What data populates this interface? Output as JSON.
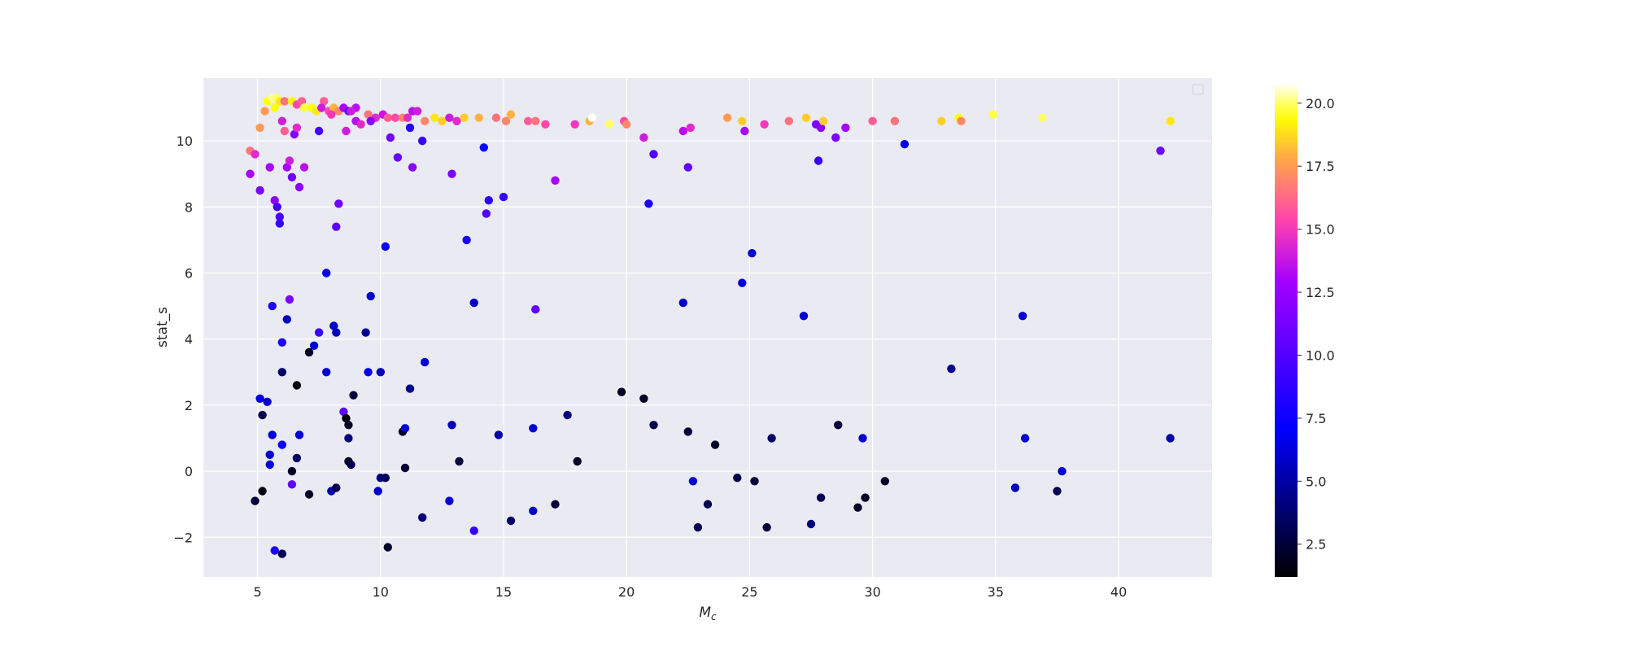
{
  "chart_data": {
    "type": "scatter",
    "title": "",
    "xlabel": "M",
    "xlabel_sub": "c",
    "ylabel": "stat_s",
    "xlim": [
      2.8,
      43.8
    ],
    "ylim": [
      -3.2,
      11.9
    ],
    "xticks": [
      5,
      10,
      15,
      20,
      25,
      30,
      35,
      40
    ],
    "yticks": [
      -2,
      0,
      2,
      4,
      6,
      8,
      10
    ],
    "grid": true,
    "legend": "top-right (empty)",
    "colorbar": {
      "colormap": "gnuplot2",
      "range": [
        1.2,
        20.8
      ],
      "ticks": [
        "2.5",
        "5.0",
        "7.5",
        "10.0",
        "12.5",
        "15.0",
        "17.5",
        "20.0"
      ],
      "tick_values": [
        2.5,
        5.0,
        7.5,
        10.0,
        12.5,
        15.0,
        17.5,
        20.0
      ]
    },
    "points": [
      [
        4.7,
        9.7,
        16.5
      ],
      [
        4.9,
        9.6,
        14.5
      ],
      [
        4.7,
        9.0,
        13.0
      ],
      [
        5.1,
        10.4,
        17.5
      ],
      [
        5.3,
        10.9,
        17.5
      ],
      [
        5.4,
        11.2,
        19.5
      ],
      [
        5.6,
        11.3,
        20.2
      ],
      [
        5.8,
        11.3,
        20.0
      ],
      [
        5.9,
        11.2,
        19.0
      ],
      [
        5.7,
        11.0,
        19.5
      ],
      [
        6.1,
        11.2,
        16.5
      ],
      [
        6.4,
        11.2,
        19.2
      ],
      [
        6.6,
        11.1,
        15.5
      ],
      [
        6.8,
        11.2,
        16.0
      ],
      [
        6.9,
        11.0,
        19.8
      ],
      [
        7.2,
        11.0,
        19.5
      ],
      [
        7.4,
        10.9,
        19.0
      ],
      [
        7.7,
        11.2,
        16.0
      ],
      [
        7.9,
        10.9,
        15.5
      ],
      [
        8.1,
        11.0,
        18.0
      ],
      [
        8.3,
        10.9,
        17.0
      ],
      [
        8.5,
        11.0,
        13.0
      ],
      [
        8.7,
        10.9,
        10.8
      ],
      [
        9.0,
        11.0,
        13.5
      ],
      [
        9.5,
        10.8,
        16.5
      ],
      [
        9.8,
        10.7,
        14.5
      ],
      [
        10.1,
        10.8,
        13.8
      ],
      [
        10.3,
        10.7,
        16.0
      ],
      [
        10.6,
        10.7,
        15.5
      ],
      [
        10.9,
        10.7,
        17.0
      ],
      [
        11.1,
        10.7,
        14.5
      ],
      [
        11.3,
        10.9,
        13.5
      ],
      [
        11.5,
        10.9,
        14.0
      ],
      [
        11.8,
        10.6,
        17.0
      ],
      [
        12.2,
        10.7,
        19.0
      ],
      [
        12.5,
        10.6,
        18.5
      ],
      [
        12.8,
        10.7,
        14.0
      ],
      [
        13.1,
        10.6,
        14.5
      ],
      [
        13.4,
        10.7,
        18.5
      ],
      [
        14.0,
        10.7,
        18.0
      ],
      [
        14.7,
        10.7,
        16.5
      ],
      [
        15.1,
        10.6,
        17.0
      ],
      [
        15.3,
        10.8,
        18.0
      ],
      [
        16.0,
        10.6,
        16.0
      ],
      [
        16.3,
        10.6,
        16.5
      ],
      [
        16.7,
        10.5,
        15.5
      ],
      [
        17.9,
        10.5,
        15.0
      ],
      [
        18.5,
        10.6,
        18.0
      ],
      [
        18.6,
        10.7,
        20.8
      ],
      [
        19.3,
        10.5,
        20.0
      ],
      [
        19.9,
        10.6,
        15.5
      ],
      [
        20.0,
        10.5,
        17.0
      ],
      [
        20.7,
        10.1,
        14.0
      ],
      [
        22.3,
        10.3,
        13.5
      ],
      [
        22.6,
        10.4,
        14.5
      ],
      [
        24.1,
        10.7,
        17.5
      ],
      [
        24.8,
        10.3,
        13.0
      ],
      [
        24.7,
        10.6,
        18.5
      ],
      [
        25.6,
        10.5,
        15.0
      ],
      [
        26.6,
        10.6,
        16.5
      ],
      [
        27.3,
        10.7,
        18.5
      ],
      [
        27.7,
        10.5,
        11.5
      ],
      [
        27.9,
        10.4,
        12.0
      ],
      [
        28.0,
        10.6,
        18.5
      ],
      [
        28.9,
        10.4,
        13.0
      ],
      [
        30.0,
        10.6,
        16.0
      ],
      [
        30.9,
        10.6,
        16.5
      ],
      [
        32.8,
        10.6,
        18.5
      ],
      [
        33.5,
        10.7,
        19.5
      ],
      [
        33.6,
        10.6,
        17.0
      ],
      [
        34.9,
        10.8,
        19.8
      ],
      [
        36.9,
        10.7,
        20.0
      ],
      [
        42.1,
        10.6,
        19.0
      ],
      [
        5.1,
        8.5,
        11.5
      ],
      [
        5.5,
        9.2,
        13.0
      ],
      [
        5.7,
        8.2,
        12.0
      ],
      [
        5.8,
        8.0,
        9.5
      ],
      [
        5.9,
        7.7,
        9.8
      ],
      [
        5.9,
        7.5,
        9.0
      ],
      [
        6.0,
        10.6,
        14.0
      ],
      [
        6.1,
        10.3,
        16.0
      ],
      [
        6.2,
        9.2,
        13.0
      ],
      [
        6.3,
        9.4,
        14.0
      ],
      [
        6.4,
        8.9,
        11.0
      ],
      [
        6.5,
        10.2,
        11.8
      ],
      [
        6.6,
        10.4,
        14.5
      ],
      [
        6.7,
        8.6,
        12.0
      ],
      [
        6.9,
        9.2,
        13.5
      ],
      [
        7.5,
        10.3,
        9.5
      ],
      [
        7.6,
        11.0,
        14.0
      ],
      [
        8.0,
        10.8,
        15.0
      ],
      [
        8.2,
        7.4,
        10.5
      ],
      [
        8.3,
        8.1,
        11.0
      ],
      [
        8.6,
        10.3,
        14.0
      ],
      [
        8.8,
        10.9,
        14.0
      ],
      [
        9.0,
        10.6,
        13.5
      ],
      [
        9.2,
        10.5,
        14.5
      ],
      [
        9.6,
        10.6,
        12.0
      ],
      [
        10.4,
        10.1,
        11.0
      ],
      [
        10.7,
        9.5,
        10.8
      ],
      [
        11.2,
        10.4,
        8.5
      ],
      [
        11.3,
        9.2,
        12.0
      ],
      [
        11.7,
        10.0,
        9.0
      ],
      [
        12.9,
        9.0,
        11.5
      ],
      [
        14.2,
        9.8,
        7.5
      ],
      [
        14.4,
        8.2,
        8.5
      ],
      [
        14.3,
        7.8,
        9.8
      ],
      [
        15.0,
        8.3,
        9.0
      ],
      [
        17.1,
        8.8,
        13.0
      ],
      [
        21.1,
        9.6,
        10.0
      ],
      [
        20.9,
        8.1,
        8.0
      ],
      [
        22.5,
        9.2,
        10.5
      ],
      [
        27.8,
        9.4,
        9.0
      ],
      [
        28.5,
        10.1,
        11.5
      ],
      [
        31.3,
        9.9,
        6.5
      ],
      [
        41.7,
        9.7,
        11.0
      ],
      [
        10.2,
        6.8,
        7.2
      ],
      [
        7.8,
        6.0,
        6.5
      ],
      [
        13.5,
        7.0,
        8.0
      ],
      [
        16.3,
        4.9,
        10.5
      ],
      [
        25.1,
        6.6,
        6.0
      ],
      [
        24.7,
        5.7,
        6.2
      ],
      [
        22.3,
        5.1,
        5.8
      ],
      [
        27.2,
        4.7,
        6.0
      ],
      [
        36.1,
        4.7,
        6.0
      ],
      [
        33.2,
        3.1,
        4.5
      ],
      [
        5.6,
        5.0,
        8.0
      ],
      [
        6.2,
        4.6,
        5.5
      ],
      [
        6.3,
        5.2,
        11.5
      ],
      [
        6.0,
        3.9,
        8.0
      ],
      [
        7.3,
        3.8,
        6.0
      ],
      [
        7.5,
        4.2,
        9.0
      ],
      [
        8.1,
        4.4,
        6.0
      ],
      [
        8.2,
        4.2,
        5.5
      ],
      [
        9.4,
        4.2,
        4.5
      ],
      [
        9.6,
        5.3,
        6.0
      ],
      [
        13.8,
        5.1,
        5.8
      ],
      [
        7.1,
        3.6,
        2.0
      ],
      [
        6.0,
        3.0,
        3.5
      ],
      [
        7.8,
        3.0,
        6.0
      ],
      [
        9.5,
        3.0,
        6.5
      ],
      [
        10.0,
        3.0,
        5.5
      ],
      [
        11.8,
        3.3,
        6.0
      ],
      [
        6.6,
        2.6,
        1.5
      ],
      [
        5.1,
        2.2,
        6.5
      ],
      [
        5.4,
        2.1,
        6.0
      ],
      [
        5.2,
        1.7,
        3.0
      ],
      [
        8.9,
        2.3,
        2.5
      ],
      [
        11.2,
        2.5,
        4.5
      ],
      [
        19.8,
        2.4,
        2.0
      ],
      [
        20.7,
        2.2,
        2.0
      ],
      [
        17.6,
        1.7,
        4.0
      ],
      [
        5.6,
        1.1,
        6.0
      ],
      [
        6.0,
        0.8,
        7.5
      ],
      [
        6.7,
        1.1,
        6.0
      ],
      [
        8.5,
        1.8,
        10.5
      ],
      [
        8.6,
        1.6,
        1.5
      ],
      [
        8.7,
        1.4,
        2.0
      ],
      [
        10.9,
        1.2,
        2.0
      ],
      [
        11.0,
        1.3,
        6.0
      ],
      [
        12.9,
        1.4,
        5.5
      ],
      [
        14.8,
        1.1,
        5.0
      ],
      [
        16.2,
        1.3,
        6.0
      ],
      [
        21.1,
        1.4,
        3.0
      ],
      [
        22.5,
        1.2,
        2.5
      ],
      [
        23.6,
        0.8,
        2.0
      ],
      [
        25.9,
        1.0,
        3.5
      ],
      [
        28.6,
        1.4,
        2.5
      ],
      [
        29.6,
        1.0,
        6.0
      ],
      [
        36.2,
        1.0,
        6.0
      ],
      [
        42.1,
        1.0,
        5.0
      ],
      [
        5.5,
        0.5,
        6.0
      ],
      [
        5.5,
        0.2,
        6.5
      ],
      [
        6.6,
        0.4,
        3.5
      ],
      [
        6.4,
        0.0,
        2.0
      ],
      [
        8.7,
        0.3,
        2.0
      ],
      [
        8.7,
        1.0,
        4.0
      ],
      [
        8.8,
        0.2,
        3.0
      ],
      [
        11.0,
        0.1,
        2.5
      ],
      [
        13.2,
        0.3,
        2.5
      ],
      [
        18.0,
        0.3,
        2.0
      ],
      [
        37.7,
        0.0,
        6.0
      ],
      [
        10.0,
        -0.2,
        4.0
      ],
      [
        10.2,
        -0.2,
        3.5
      ],
      [
        6.4,
        -0.4,
        10.5
      ],
      [
        9.9,
        -0.6,
        6.0
      ],
      [
        8.0,
        -0.6,
        5.0
      ],
      [
        8.2,
        -0.5,
        3.0
      ],
      [
        7.1,
        -0.7,
        2.0
      ],
      [
        5.2,
        -0.6,
        1.5
      ],
      [
        4.9,
        -0.9,
        2.5
      ],
      [
        12.8,
        -0.9,
        6.0
      ],
      [
        17.1,
        -1.0,
        2.5
      ],
      [
        22.7,
        -0.3,
        6.0
      ],
      [
        24.5,
        -0.2,
        3.0
      ],
      [
        25.2,
        -0.3,
        2.5
      ],
      [
        30.5,
        -0.3,
        2.0
      ],
      [
        35.8,
        -0.5,
        5.5
      ],
      [
        37.5,
        -0.6,
        3.0
      ],
      [
        23.3,
        -1.0,
        3.0
      ],
      [
        27.9,
        -0.8,
        3.0
      ],
      [
        29.7,
        -0.8,
        2.0
      ],
      [
        29.4,
        -1.1,
        2.0
      ],
      [
        11.7,
        -1.4,
        4.0
      ],
      [
        15.3,
        -1.5,
        3.5
      ],
      [
        16.2,
        -1.2,
        5.5
      ],
      [
        13.8,
        -1.8,
        9.0
      ],
      [
        22.9,
        -1.7,
        3.0
      ],
      [
        25.7,
        -1.7,
        2.5
      ],
      [
        27.5,
        -1.6,
        4.0
      ],
      [
        10.3,
        -2.3,
        2.0
      ],
      [
        5.7,
        -2.4,
        8.0
      ],
      [
        6.0,
        -2.5,
        3.0
      ]
    ]
  }
}
